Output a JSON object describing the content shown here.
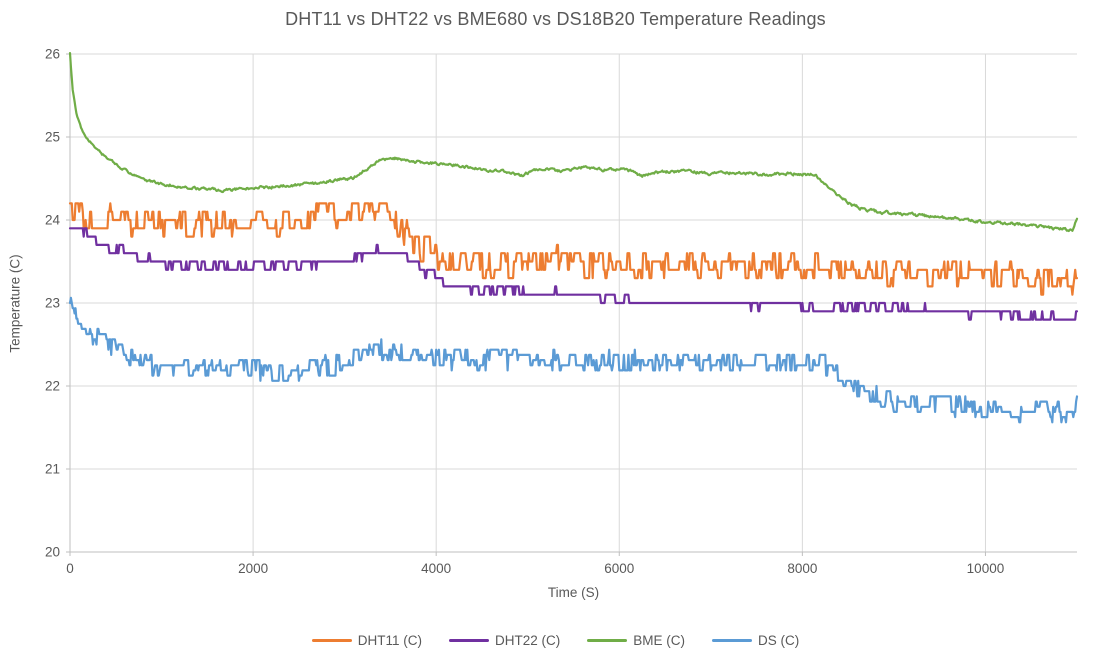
{
  "chart_data": {
    "type": "line",
    "title": "DHT11 vs DHT22 vs BME680 vs DS18B20 Temperature Readings",
    "xlabel": "Time (S)",
    "ylabel": "Temperature (C)",
    "xlim": [
      0,
      11000
    ],
    "ylim": [
      20,
      26
    ],
    "x_ticks": [
      0,
      2000,
      4000,
      6000,
      8000,
      10000
    ],
    "y_ticks": [
      20,
      21,
      22,
      23,
      24,
      25,
      26
    ],
    "grid": true,
    "legend_position": "bottom",
    "sample_interval_s": 10,
    "colors": {
      "text": "#595959",
      "gridline": "#D9D9D9",
      "axis": "#BFBFBF",
      "background": "#FFFFFF"
    },
    "series": [
      {
        "name": "DHT11 (C)",
        "color": "#ED7D31",
        "quant_step": 0.1,
        "noise": 0.16,
        "seed": 11,
        "keypoints": [
          [
            0,
            24.2
          ],
          [
            80,
            24.12
          ],
          [
            200,
            24.05
          ],
          [
            500,
            24.0
          ],
          [
            900,
            23.97
          ],
          [
            1400,
            23.95
          ],
          [
            1900,
            23.97
          ],
          [
            2300,
            23.98
          ],
          [
            2600,
            24.02
          ],
          [
            2900,
            24.1
          ],
          [
            3200,
            24.12
          ],
          [
            3400,
            24.08
          ],
          [
            3550,
            23.95
          ],
          [
            3700,
            23.8
          ],
          [
            3850,
            23.68
          ],
          [
            4000,
            23.55
          ],
          [
            4200,
            23.47
          ],
          [
            4500,
            23.47
          ],
          [
            4800,
            23.5
          ],
          [
            5100,
            23.53
          ],
          [
            5400,
            23.5
          ],
          [
            5700,
            23.47
          ],
          [
            6100,
            23.45
          ],
          [
            6500,
            23.46
          ],
          [
            7000,
            23.44
          ],
          [
            7500,
            23.43
          ],
          [
            8000,
            23.44
          ],
          [
            8300,
            23.42
          ],
          [
            8600,
            23.38
          ],
          [
            9000,
            23.36
          ],
          [
            9500,
            23.35
          ],
          [
            10000,
            23.33
          ],
          [
            10400,
            23.3
          ],
          [
            10800,
            23.27
          ],
          [
            10960,
            23.26
          ],
          [
            11000,
            23.38
          ]
        ]
      },
      {
        "name": "DHT22 (C)",
        "color": "#7030A0",
        "quant_step": 0.1,
        "noise": 0.05,
        "seed": 22,
        "keypoints": [
          [
            0,
            23.9
          ],
          [
            180,
            23.82
          ],
          [
            300,
            23.75
          ],
          [
            450,
            23.68
          ],
          [
            600,
            23.6
          ],
          [
            800,
            23.52
          ],
          [
            1000,
            23.47
          ],
          [
            1300,
            23.44
          ],
          [
            1700,
            23.42
          ],
          [
            2100,
            23.43
          ],
          [
            2500,
            23.46
          ],
          [
            2800,
            23.5
          ],
          [
            3100,
            23.54
          ],
          [
            3300,
            23.62
          ],
          [
            3450,
            23.64
          ],
          [
            3600,
            23.56
          ],
          [
            3750,
            23.48
          ],
          [
            3900,
            23.38
          ],
          [
            4100,
            23.28
          ],
          [
            4300,
            23.2
          ],
          [
            4600,
            23.16
          ],
          [
            5000,
            23.13
          ],
          [
            5400,
            23.11
          ],
          [
            5800,
            23.08
          ],
          [
            6100,
            23.03
          ],
          [
            6400,
            23.0
          ],
          [
            7000,
            23.0
          ],
          [
            7600,
            22.99
          ],
          [
            8100,
            22.97
          ],
          [
            8600,
            22.95
          ],
          [
            9100,
            22.93
          ],
          [
            9500,
            22.9
          ],
          [
            10000,
            22.89
          ],
          [
            10400,
            22.86
          ],
          [
            10700,
            22.82
          ],
          [
            10960,
            22.81
          ],
          [
            11000,
            22.9
          ]
        ]
      },
      {
        "name": "BME (C)",
        "color": "#70AD47",
        "quant_step": 0,
        "noise": 0.018,
        "seed": 680,
        "keypoints": [
          [
            0,
            26.0
          ],
          [
            30,
            25.55
          ],
          [
            70,
            25.3
          ],
          [
            120,
            25.12
          ],
          [
            200,
            24.97
          ],
          [
            300,
            24.85
          ],
          [
            420,
            24.73
          ],
          [
            550,
            24.63
          ],
          [
            700,
            24.55
          ],
          [
            850,
            24.48
          ],
          [
            1000,
            24.44
          ],
          [
            1200,
            24.4
          ],
          [
            1450,
            24.37
          ],
          [
            1700,
            24.36
          ],
          [
            1950,
            24.38
          ],
          [
            2200,
            24.4
          ],
          [
            2450,
            24.42
          ],
          [
            2700,
            24.44
          ],
          [
            2900,
            24.48
          ],
          [
            3100,
            24.51
          ],
          [
            3250,
            24.62
          ],
          [
            3400,
            24.73
          ],
          [
            3550,
            24.74
          ],
          [
            3750,
            24.71
          ],
          [
            4000,
            24.68
          ],
          [
            4250,
            24.66
          ],
          [
            4500,
            24.61
          ],
          [
            4750,
            24.58
          ],
          [
            4950,
            24.53
          ],
          [
            5100,
            24.62
          ],
          [
            5350,
            24.59
          ],
          [
            5600,
            24.63
          ],
          [
            5850,
            24.6
          ],
          [
            6050,
            24.62
          ],
          [
            6250,
            24.53
          ],
          [
            6450,
            24.58
          ],
          [
            6700,
            24.59
          ],
          [
            7000,
            24.56
          ],
          [
            7300,
            24.57
          ],
          [
            7600,
            24.55
          ],
          [
            7900,
            24.56
          ],
          [
            8150,
            24.54
          ],
          [
            8250,
            24.42
          ],
          [
            8400,
            24.28
          ],
          [
            8550,
            24.18
          ],
          [
            8700,
            24.12
          ],
          [
            8900,
            24.09
          ],
          [
            9200,
            24.06
          ],
          [
            9500,
            24.04
          ],
          [
            9800,
            24.0
          ],
          [
            10100,
            23.97
          ],
          [
            10400,
            23.95
          ],
          [
            10700,
            23.91
          ],
          [
            10950,
            23.88
          ],
          [
            11000,
            24.02
          ]
        ]
      },
      {
        "name": "DS (C)",
        "color": "#5B9BD5",
        "quant_step": 0.0625,
        "noise": 0.12,
        "seed": 18,
        "keypoints": [
          [
            0,
            23.0
          ],
          [
            120,
            22.82
          ],
          [
            260,
            22.63
          ],
          [
            400,
            22.5
          ],
          [
            550,
            22.4
          ],
          [
            700,
            22.32
          ],
          [
            900,
            22.26
          ],
          [
            1150,
            22.21
          ],
          [
            1450,
            22.18
          ],
          [
            1750,
            22.2
          ],
          [
            2050,
            22.19
          ],
          [
            2350,
            22.16
          ],
          [
            2650,
            22.2
          ],
          [
            2850,
            22.25
          ],
          [
            3050,
            22.32
          ],
          [
            3250,
            22.4
          ],
          [
            3450,
            22.43
          ],
          [
            3650,
            22.4
          ],
          [
            3850,
            22.36
          ],
          [
            4100,
            22.32
          ],
          [
            4400,
            22.31
          ],
          [
            4800,
            22.33
          ],
          [
            5200,
            22.3
          ],
          [
            5600,
            22.31
          ],
          [
            6000,
            22.29
          ],
          [
            6400,
            22.3
          ],
          [
            6800,
            22.28
          ],
          [
            7200,
            22.28
          ],
          [
            7600,
            22.26
          ],
          [
            8000,
            22.28
          ],
          [
            8200,
            22.26
          ],
          [
            8350,
            22.18
          ],
          [
            8500,
            22.05
          ],
          [
            8650,
            21.94
          ],
          [
            8800,
            21.87
          ],
          [
            9000,
            21.82
          ],
          [
            9300,
            21.79
          ],
          [
            9700,
            21.76
          ],
          [
            10100,
            21.73
          ],
          [
            10500,
            21.7
          ],
          [
            10800,
            21.67
          ],
          [
            10960,
            21.64
          ],
          [
            11000,
            21.8
          ]
        ]
      }
    ]
  }
}
